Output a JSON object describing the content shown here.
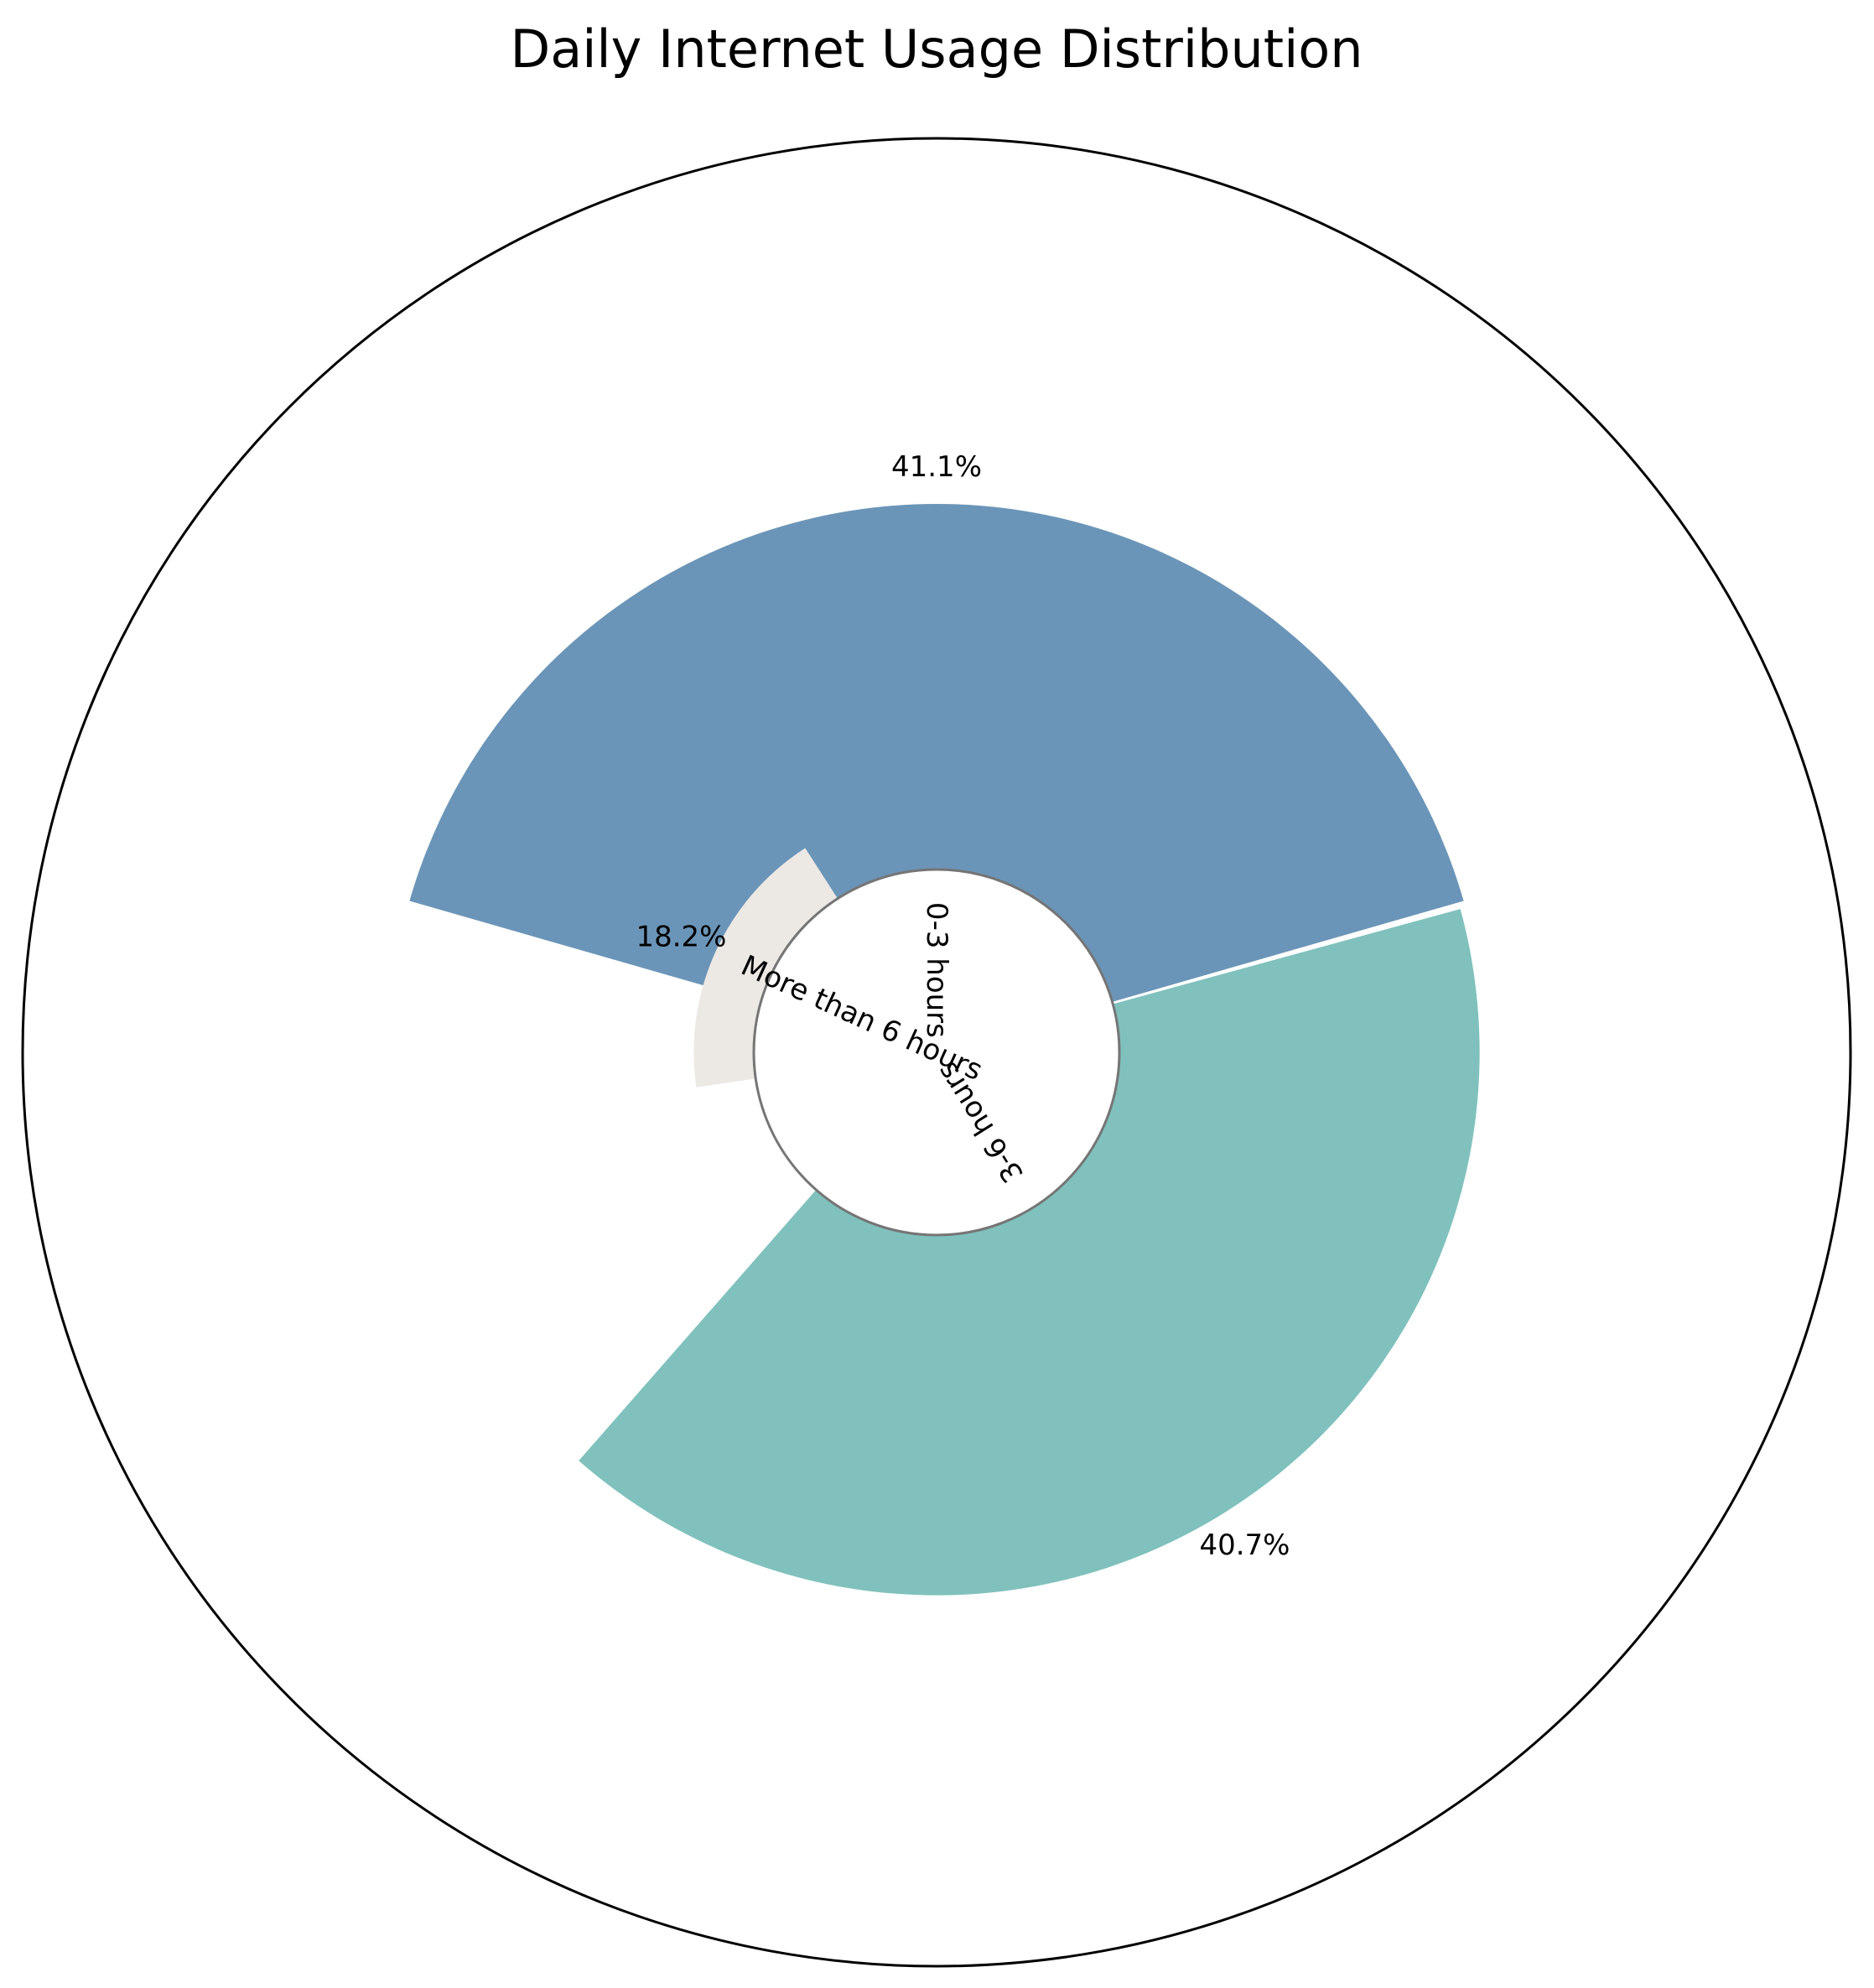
{
  "chart_data": {
    "type": "pie",
    "title": "Daily Internet Usage Distribution",
    "categories": [
      "0-3 hours",
      "3-6 hours",
      "More than 6 hours"
    ],
    "values": [
      41.1,
      40.7,
      18.2
    ],
    "value_labels": [
      "41.1%",
      "40.7%",
      "18.2%"
    ],
    "colors": [
      "#6b95b8",
      "#80c1bd",
      "#ece8e4"
    ],
    "legend": "none",
    "grid": false
  }
}
